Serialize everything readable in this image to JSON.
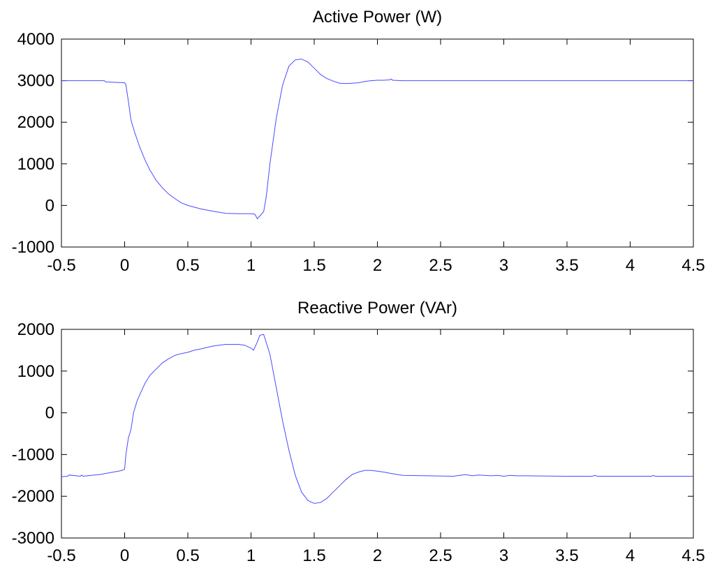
{
  "chart_data": [
    {
      "type": "line",
      "title": "Active Power (W)",
      "xlabel": "",
      "ylabel": "",
      "xlim": [
        -0.5,
        4.5
      ],
      "ylim": [
        -1000,
        4000
      ],
      "xticks": [
        "-0.5",
        "0",
        "0.5",
        "1",
        "1.5",
        "2",
        "2.5",
        "3",
        "3.5",
        "4",
        "4.5"
      ],
      "yticks": [
        "4000",
        "3000",
        "2000",
        "1000",
        "0",
        "-1000"
      ],
      "grid": false,
      "line_color": "#4a4aff",
      "series": [
        {
          "x": [
            -0.5,
            -0.16,
            -0.15,
            0,
            0.01,
            0.03,
            0.05,
            0.08,
            0.12,
            0.16,
            0.2,
            0.25,
            0.3,
            0.35,
            0.4,
            0.45,
            0.5,
            0.6,
            0.7,
            0.8,
            0.9,
            1.0,
            1.03,
            1.05,
            1.08,
            1.1,
            1.12,
            1.15,
            1.2,
            1.25,
            1.3,
            1.35,
            1.4,
            1.45,
            1.5,
            1.55,
            1.6,
            1.65,
            1.7,
            1.75,
            1.8,
            1.85,
            1.9,
            1.95,
            2.0,
            2.05,
            2.1,
            2.11,
            2.12,
            2.2,
            3.0,
            4.5
          ],
          "y": [
            3000,
            3000,
            2970,
            2950,
            2900,
            2500,
            2050,
            1750,
            1400,
            1100,
            850,
            600,
            420,
            270,
            160,
            60,
            0,
            -80,
            -140,
            -190,
            -200,
            -200,
            -210,
            -320,
            -220,
            -150,
            200,
            1000,
            2100,
            2900,
            3350,
            3500,
            3520,
            3450,
            3300,
            3150,
            3050,
            2990,
            2940,
            2930,
            2940,
            2950,
            2980,
            3000,
            3010,
            3010,
            3020,
            3040,
            3010,
            3000,
            3000,
            3000
          ]
        }
      ]
    },
    {
      "type": "line",
      "title": "Reactive Power (VAr)",
      "xlabel": "",
      "ylabel": "",
      "xlim": [
        -0.5,
        4.5
      ],
      "ylim": [
        -3000,
        2000
      ],
      "xticks": [
        "-0.5",
        "0",
        "0.5",
        "1",
        "1.5",
        "2",
        "2.5",
        "3",
        "3.5",
        "4",
        "4.5"
      ],
      "yticks": [
        "2000",
        "1000",
        "0",
        "-1000",
        "-2000",
        "-3000"
      ],
      "grid": false,
      "line_color": "#4a4aff",
      "series": [
        {
          "x": [
            -0.5,
            -0.45,
            -0.44,
            -0.35,
            -0.34,
            -0.33,
            -0.2,
            -0.05,
            -0.02,
            0,
            0.01,
            0.03,
            0.05,
            0.07,
            0.1,
            0.13,
            0.16,
            0.2,
            0.25,
            0.3,
            0.35,
            0.4,
            0.45,
            0.5,
            0.55,
            0.6,
            0.7,
            0.8,
            0.9,
            0.95,
            1.0,
            1.02,
            1.05,
            1.07,
            1.1,
            1.15,
            1.2,
            1.25,
            1.3,
            1.35,
            1.4,
            1.45,
            1.5,
            1.55,
            1.6,
            1.65,
            1.7,
            1.75,
            1.8,
            1.85,
            1.9,
            1.95,
            2.0,
            2.05,
            2.1,
            2.2,
            2.6,
            2.65,
            2.7,
            2.75,
            2.8,
            2.9,
            2.95,
            3.0,
            3.05,
            3.1,
            3.2,
            3.5,
            3.7,
            3.72,
            3.74,
            4.0,
            4.17,
            4.18,
            4.2,
            4.5
          ],
          "y": [
            -1530,
            -1520,
            -1490,
            -1520,
            -1490,
            -1520,
            -1480,
            -1400,
            -1380,
            -1350,
            -1000,
            -600,
            -400,
            0,
            300,
            500,
            700,
            900,
            1050,
            1200,
            1300,
            1380,
            1420,
            1450,
            1500,
            1530,
            1600,
            1640,
            1640,
            1620,
            1550,
            1500,
            1700,
            1860,
            1880,
            1400,
            600,
            -200,
            -900,
            -1500,
            -1900,
            -2100,
            -2170,
            -2150,
            -2050,
            -1900,
            -1750,
            -1600,
            -1480,
            -1420,
            -1380,
            -1380,
            -1400,
            -1420,
            -1450,
            -1500,
            -1520,
            -1500,
            -1480,
            -1510,
            -1490,
            -1510,
            -1500,
            -1520,
            -1500,
            -1510,
            -1510,
            -1520,
            -1520,
            -1500,
            -1520,
            -1520,
            -1520,
            -1500,
            -1520,
            -1520
          ]
        }
      ]
    }
  ]
}
